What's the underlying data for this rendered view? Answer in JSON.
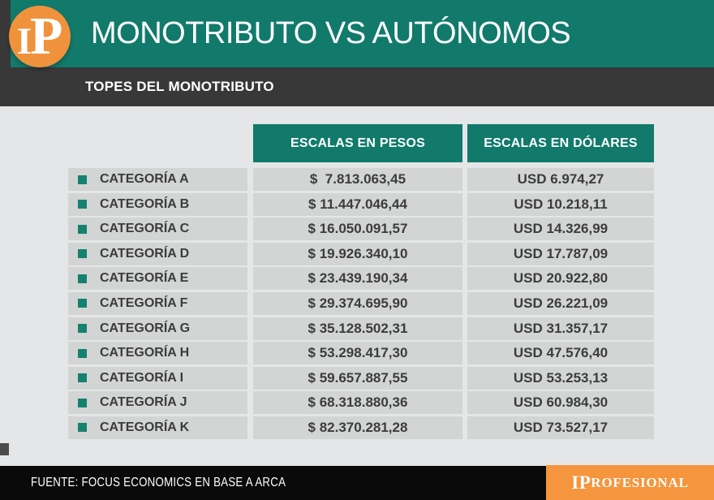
{
  "header": {
    "title": "MONOTRIBUTO VS AUTÓNOMOS",
    "subtitle": "TOPES DEL MONOTRIBUTO",
    "logo_i": "I",
    "logo_p": "P"
  },
  "table": {
    "header_pesos": "ESCALAS EN PESOS",
    "header_usd": "ESCALAS EN DÓLARES",
    "rows": [
      {
        "category": "CATEGORÍA A",
        "pesos": "$  7.813.063,45",
        "usd": "USD 6.974,27"
      },
      {
        "category": "CATEGORÍA B",
        "pesos": "$ 11.447.046,44",
        "usd": "USD 10.218,11"
      },
      {
        "category": "CATEGORÍA C",
        "pesos": "$ 16.050.091,57",
        "usd": "USD 14.326,99"
      },
      {
        "category": "CATEGORÍA D",
        "pesos": "$ 19.926.340,10",
        "usd": "USD 17.787,09"
      },
      {
        "category": "CATEGORÍA E",
        "pesos": "$ 23.439.190,34",
        "usd": "USD 20.922,80"
      },
      {
        "category": "CATEGORÍA F",
        "pesos": "$ 29.374.695,90",
        "usd": "USD 26.221,09"
      },
      {
        "category": "CATEGORÍA G",
        "pesos": "$ 35.128.502,31",
        "usd": "USD 31.357,17"
      },
      {
        "category": "CATEGORÍA H",
        "pesos": "$ 53.298.417,30",
        "usd": "USD 47.576,40"
      },
      {
        "category": "CATEGORÍA I",
        "pesos": "$ 59.657.887,55",
        "usd": "USD 53.253,13"
      },
      {
        "category": "CATEGORÍA J",
        "pesos": "$ 68.318.880,36",
        "usd": "USD 60.984,30"
      },
      {
        "category": "CATEGORÍA K",
        "pesos": "$ 82.370.281,28",
        "usd": "USD 73.527,17"
      }
    ]
  },
  "footer": {
    "source": "FUENTE: FOCUS ECONOMICS EN BASE A ARCA",
    "brand_ip": "IP",
    "brand_rest": "ROFESIONAL"
  },
  "colors": {
    "teal": "#117a6b",
    "dark_bar": "#383838",
    "logo_orange": "#f0923c",
    "footer_orange": "#f5953d",
    "row_bg": "#d3d4d4",
    "page_bg": "#e5e6e7",
    "footer_black": "#0a0a0a",
    "bullet_teal": "#15816f"
  },
  "chart_data": {
    "type": "table",
    "title": "MONOTRIBUTO VS AUTÓNOMOS",
    "subtitle": "TOPES DEL MONOTRIBUTO",
    "columns": [
      "CATEGORÍA",
      "ESCALAS EN PESOS",
      "ESCALAS EN DÓLARES"
    ],
    "categories": [
      "A",
      "B",
      "C",
      "D",
      "E",
      "F",
      "G",
      "H",
      "I",
      "J",
      "K"
    ],
    "series": [
      {
        "name": "ESCALAS EN PESOS",
        "values": [
          7813063.45,
          11447046.44,
          16050091.57,
          19926340.1,
          23439190.34,
          29374695.9,
          35128502.31,
          53298417.3,
          59657887.55,
          68318880.36,
          82370281.28
        ]
      },
      {
        "name": "ESCALAS EN DÓLARES",
        "values": [
          6974.27,
          10218.11,
          14326.99,
          17787.09,
          20922.8,
          26221.09,
          31357.17,
          47576.4,
          53253.13,
          60984.3,
          73527.17
        ]
      }
    ],
    "source": "FUENTE: FOCUS ECONOMICS EN BASE A ARCA"
  }
}
